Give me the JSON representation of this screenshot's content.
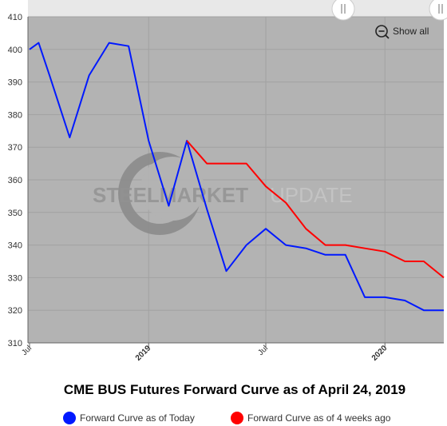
{
  "chart_data": {
    "type": "line",
    "title": "CME BUS Futures Forward Curve as of April 24, 2019",
    "xlabel": "",
    "ylabel": "",
    "ylim": [
      310,
      410
    ],
    "yticks": [
      "310",
      "320",
      "330",
      "340",
      "350",
      "360",
      "370",
      "380",
      "390",
      "400",
      "410"
    ],
    "xticks": [
      {
        "label": "Jul",
        "bold": false
      },
      {
        "label": "2019",
        "bold": true
      },
      {
        "label": "Jul",
        "bold": false
      },
      {
        "label": "2020",
        "bold": true
      }
    ],
    "grid": true,
    "legend_position": "bottom",
    "series": [
      {
        "name": "Forward Curve as of Today",
        "color": "#0019ff",
        "points": [
          {
            "x": "2018-07-01",
            "y": 400
          },
          {
            "x": "2018-07-15",
            "y": 402
          },
          {
            "x": "2018-08-01",
            "y": 392
          },
          {
            "x": "2018-09-01",
            "y": 373
          },
          {
            "x": "2018-10-01",
            "y": 392
          },
          {
            "x": "2018-11-01",
            "y": 402
          },
          {
            "x": "2018-12-01",
            "y": 401
          },
          {
            "x": "2019-01-01",
            "y": 372
          },
          {
            "x": "2019-02-01",
            "y": 352
          },
          {
            "x": "2019-03-01",
            "y": 372
          },
          {
            "x": "2019-04-01",
            "y": 351
          },
          {
            "x": "2019-05-01",
            "y": 332
          },
          {
            "x": "2019-06-01",
            "y": 340
          },
          {
            "x": "2019-07-01",
            "y": 345
          },
          {
            "x": "2019-08-01",
            "y": 340
          },
          {
            "x": "2019-09-01",
            "y": 339
          },
          {
            "x": "2019-10-01",
            "y": 337
          },
          {
            "x": "2019-11-01",
            "y": 337
          },
          {
            "x": "2019-12-01",
            "y": 324
          },
          {
            "x": "2020-01-01",
            "y": 324
          },
          {
            "x": "2020-02-01",
            "y": 323
          },
          {
            "x": "2020-03-01",
            "y": 320
          },
          {
            "x": "2020-04-01",
            "y": 320
          }
        ]
      },
      {
        "name": "Forward Curve as of 4 weeks ago",
        "color": "#ff0000",
        "points": [
          {
            "x": "2019-03-01",
            "y": 372
          },
          {
            "x": "2019-04-01",
            "y": 365
          },
          {
            "x": "2019-05-01",
            "y": 365
          },
          {
            "x": "2019-06-01",
            "y": 365
          },
          {
            "x": "2019-07-01",
            "y": 358
          },
          {
            "x": "2019-08-01",
            "y": 353
          },
          {
            "x": "2019-09-01",
            "y": 345
          },
          {
            "x": "2019-10-01",
            "y": 340
          },
          {
            "x": "2019-11-01",
            "y": 340
          },
          {
            "x": "2019-12-01",
            "y": 339
          },
          {
            "x": "2020-01-01",
            "y": 338
          },
          {
            "x": "2020-02-01",
            "y": 335
          },
          {
            "x": "2020-03-01",
            "y": 335
          },
          {
            "x": "2020-04-01",
            "y": 330
          }
        ]
      }
    ]
  },
  "controls": {
    "show_all_label": "Show all"
  },
  "watermark": {
    "bold_text": "STEELMARKET",
    "light_text": "UPDATE"
  },
  "colors": {
    "plot_background": "#b3b3b3",
    "grid": "#a2a2a2",
    "navigator_background": "#e8e8e8"
  }
}
